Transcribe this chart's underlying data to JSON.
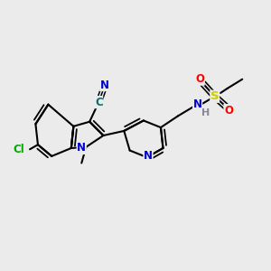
{
  "bg_color": "#ebebeb",
  "bond_color": "#000000",
  "colors": {
    "N": "#0000cc",
    "C_nitrile": "#007070",
    "Cl": "#00aa00",
    "S": "#cccc00",
    "O": "#ff0000",
    "H": "#888899"
  },
  "fig_size": [
    3.0,
    3.0
  ],
  "dpi": 100
}
